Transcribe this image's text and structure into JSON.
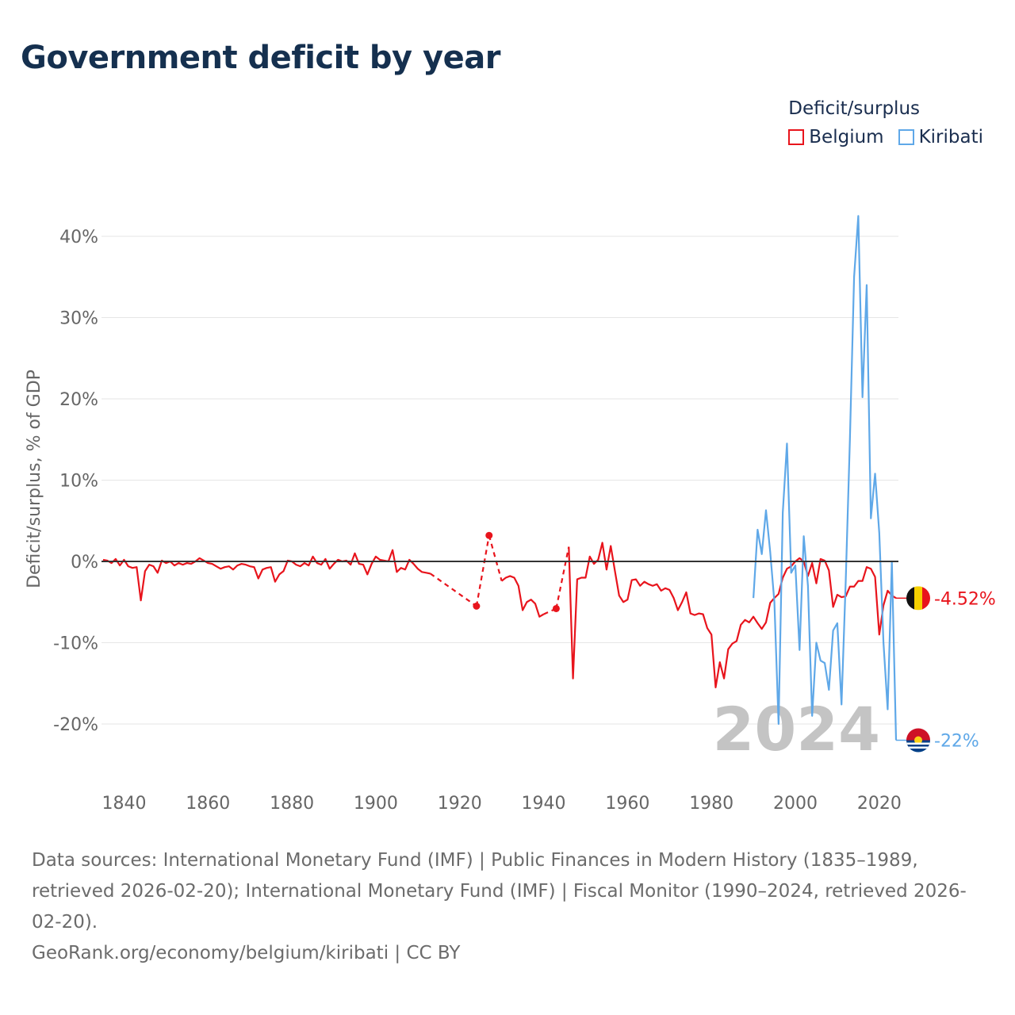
{
  "page_title": "Government deficit by year",
  "legend": {
    "title": "Deficit/surplus",
    "items": [
      {
        "label": "Belgium",
        "color": "#e8141c"
      },
      {
        "label": "Kiribati",
        "color": "#5fa8e8"
      }
    ]
  },
  "watermark_year": "2024",
  "colors": {
    "belgium": "#e8141c",
    "kiribati": "#5fa8e8",
    "zero_line": "#333333",
    "grid": "#e6e6e6",
    "tick": "#666666",
    "watermark": "#c4c4c4"
  },
  "chart_data": {
    "type": "line",
    "title": "Government deficit by year",
    "xlabel": "",
    "ylabel": "Deficit/surplus, % of GDP",
    "xlim": [
      1835,
      2024
    ],
    "ylim": [
      -26,
      48
    ],
    "x_ticks": [
      1840,
      1860,
      1880,
      1900,
      1920,
      1940,
      1960,
      1980,
      2000,
      2020
    ],
    "y_ticks": [
      {
        "value": 40,
        "label": "40%"
      },
      {
        "value": 30,
        "label": "30%"
      },
      {
        "value": 20,
        "label": "20%"
      },
      {
        "value": 10,
        "label": "10%"
      },
      {
        "value": 0,
        "label": "0%"
      },
      {
        "value": -10,
        "label": "-10%"
      },
      {
        "value": -20,
        "label": "-20%"
      }
    ],
    "grid": true,
    "series": [
      {
        "name": "Belgium",
        "final_label": "-4.52%",
        "final_value": -4.52,
        "points": [
          [
            1835,
            0.2
          ],
          [
            1836,
            0.1
          ],
          [
            1837,
            -0.2
          ],
          [
            1838,
            0.3
          ],
          [
            1839,
            -0.5
          ],
          [
            1840,
            0.2
          ],
          [
            1841,
            -0.6
          ],
          [
            1842,
            -0.8
          ],
          [
            1843,
            -0.7
          ],
          [
            1844,
            -4.8
          ],
          [
            1845,
            -1.2
          ],
          [
            1846,
            -0.4
          ],
          [
            1847,
            -0.6
          ],
          [
            1848,
            -1.4
          ],
          [
            1849,
            0.1
          ],
          [
            1850,
            -0.2
          ],
          [
            1851,
            0.0
          ],
          [
            1852,
            -0.5
          ],
          [
            1853,
            -0.2
          ],
          [
            1854,
            -0.4
          ],
          [
            1855,
            -0.2
          ],
          [
            1856,
            -0.3
          ],
          [
            1857,
            0.0
          ],
          [
            1858,
            0.4
          ],
          [
            1859,
            0.1
          ],
          [
            1860,
            -0.2
          ],
          [
            1861,
            -0.3
          ],
          [
            1862,
            -0.6
          ],
          [
            1863,
            -0.9
          ],
          [
            1864,
            -0.7
          ],
          [
            1865,
            -0.6
          ],
          [
            1866,
            -1.0
          ],
          [
            1867,
            -0.5
          ],
          [
            1868,
            -0.3
          ],
          [
            1869,
            -0.4
          ],
          [
            1870,
            -0.6
          ],
          [
            1871,
            -0.7
          ],
          [
            1872,
            -2.1
          ],
          [
            1873,
            -1.0
          ],
          [
            1874,
            -0.8
          ],
          [
            1875,
            -0.7
          ],
          [
            1876,
            -2.5
          ],
          [
            1877,
            -1.6
          ],
          [
            1878,
            -1.2
          ],
          [
            1879,
            0.1
          ],
          [
            1880,
            0.0
          ],
          [
            1881,
            -0.4
          ],
          [
            1882,
            -0.6
          ],
          [
            1883,
            -0.2
          ],
          [
            1884,
            -0.5
          ],
          [
            1885,
            0.6
          ],
          [
            1886,
            -0.2
          ],
          [
            1887,
            -0.4
          ],
          [
            1888,
            0.3
          ],
          [
            1889,
            -0.9
          ],
          [
            1890,
            -0.3
          ],
          [
            1891,
            0.2
          ],
          [
            1892,
            0.0
          ],
          [
            1893,
            0.1
          ],
          [
            1894,
            -0.4
          ],
          [
            1895,
            1.0
          ],
          [
            1896,
            -0.3
          ],
          [
            1897,
            -0.4
          ],
          [
            1898,
            -1.6
          ],
          [
            1899,
            -0.3
          ],
          [
            1900,
            0.6
          ],
          [
            1901,
            0.2
          ],
          [
            1902,
            0.1
          ],
          [
            1903,
            0.0
          ],
          [
            1904,
            1.4
          ],
          [
            1905,
            -1.3
          ],
          [
            1906,
            -0.8
          ],
          [
            1907,
            -1.0
          ],
          [
            1908,
            0.2
          ],
          [
            1909,
            -0.3
          ],
          [
            1910,
            -0.9
          ],
          [
            1911,
            -1.3
          ],
          [
            1912,
            -1.4
          ],
          [
            1913,
            -1.5
          ],
          [
            1924,
            -5.5
          ],
          [
            1927,
            3.2
          ],
          [
            1930,
            -2.4
          ],
          [
            1931,
            -2.0
          ],
          [
            1932,
            -1.8
          ],
          [
            1933,
            -2.0
          ],
          [
            1934,
            -3.0
          ],
          [
            1935,
            -6.0
          ],
          [
            1936,
            -5.0
          ],
          [
            1937,
            -4.7
          ],
          [
            1938,
            -5.2
          ],
          [
            1939,
            -6.8
          ],
          [
            1940,
            -6.5
          ],
          [
            1943,
            -5.8
          ],
          [
            1946,
            1.8
          ],
          [
            1947,
            -14.4
          ],
          [
            1948,
            -2.2
          ],
          [
            1949,
            -2.0
          ],
          [
            1950,
            -2.0
          ],
          [
            1951,
            0.6
          ],
          [
            1952,
            -0.3
          ],
          [
            1953,
            0.2
          ],
          [
            1954,
            2.3
          ],
          [
            1955,
            -1.0
          ],
          [
            1956,
            1.9
          ],
          [
            1957,
            -1.2
          ],
          [
            1958,
            -4.2
          ],
          [
            1959,
            -5.0
          ],
          [
            1960,
            -4.7
          ],
          [
            1961,
            -2.3
          ],
          [
            1962,
            -2.2
          ],
          [
            1963,
            -3.0
          ],
          [
            1964,
            -2.5
          ],
          [
            1965,
            -2.8
          ],
          [
            1966,
            -3.0
          ],
          [
            1967,
            -2.8
          ],
          [
            1968,
            -3.6
          ],
          [
            1969,
            -3.3
          ],
          [
            1970,
            -3.5
          ],
          [
            1971,
            -4.5
          ],
          [
            1972,
            -6.0
          ],
          [
            1973,
            -5.0
          ],
          [
            1974,
            -3.8
          ],
          [
            1975,
            -6.4
          ],
          [
            1976,
            -6.6
          ],
          [
            1977,
            -6.4
          ],
          [
            1978,
            -6.5
          ],
          [
            1979,
            -8.2
          ],
          [
            1980,
            -9.0
          ],
          [
            1981,
            -15.5
          ],
          [
            1982,
            -12.4
          ],
          [
            1983,
            -14.4
          ],
          [
            1984,
            -10.8
          ],
          [
            1985,
            -10.1
          ],
          [
            1986,
            -9.8
          ],
          [
            1987,
            -7.8
          ],
          [
            1988,
            -7.2
          ],
          [
            1989,
            -7.5
          ],
          [
            1990,
            -6.8
          ],
          [
            1991,
            -7.6
          ],
          [
            1992,
            -8.3
          ],
          [
            1993,
            -7.5
          ],
          [
            1994,
            -5.1
          ],
          [
            1995,
            -4.5
          ],
          [
            1996,
            -4.0
          ],
          [
            1997,
            -2.0
          ],
          [
            1998,
            -0.9
          ],
          [
            1999,
            -0.6
          ],
          [
            2000,
            0.0
          ],
          [
            2001,
            0.4
          ],
          [
            2002,
            0.0
          ],
          [
            2003,
            -1.8
          ],
          [
            2004,
            -0.2
          ],
          [
            2005,
            -2.7
          ],
          [
            2006,
            0.3
          ],
          [
            2007,
            0.1
          ],
          [
            2008,
            -1.1
          ],
          [
            2009,
            -5.6
          ],
          [
            2010,
            -4.1
          ],
          [
            2011,
            -4.4
          ],
          [
            2012,
            -4.3
          ],
          [
            2013,
            -3.1
          ],
          [
            2014,
            -3.1
          ],
          [
            2015,
            -2.4
          ],
          [
            2016,
            -2.4
          ],
          [
            2017,
            -0.7
          ],
          [
            2018,
            -0.9
          ],
          [
            2019,
            -1.9
          ],
          [
            2020,
            -9.0
          ],
          [
            2021,
            -5.4
          ],
          [
            2022,
            -3.6
          ],
          [
            2023,
            -4.2
          ],
          [
            2024,
            -4.52
          ]
        ]
      },
      {
        "name": "Kiribati",
        "final_label": "-22%",
        "final_value": -22,
        "points": [
          [
            1990,
            -4.5
          ],
          [
            1991,
            3.9
          ],
          [
            1992,
            0.9
          ],
          [
            1993,
            6.3
          ],
          [
            1994,
            1.2
          ],
          [
            1995,
            -5.0
          ],
          [
            1996,
            -20.0
          ],
          [
            1997,
            6.0
          ],
          [
            1998,
            14.5
          ],
          [
            1999,
            -1.4
          ],
          [
            2000,
            -0.5
          ],
          [
            2001,
            -10.9
          ],
          [
            2002,
            3.1
          ],
          [
            2003,
            -3.0
          ],
          [
            2004,
            -19.0
          ],
          [
            2005,
            -10.0
          ],
          [
            2006,
            -12.2
          ],
          [
            2007,
            -12.5
          ],
          [
            2008,
            -15.8
          ],
          [
            2009,
            -8.5
          ],
          [
            2010,
            -7.6
          ],
          [
            2011,
            -17.6
          ],
          [
            2012,
            -2.5
          ],
          [
            2013,
            15.0
          ],
          [
            2014,
            35.0
          ],
          [
            2015,
            42.5
          ],
          [
            2016,
            20.2
          ],
          [
            2017,
            34.0
          ],
          [
            2018,
            5.3
          ],
          [
            2019,
            10.8
          ],
          [
            2020,
            3.5
          ],
          [
            2021,
            -10.0
          ],
          [
            2022,
            -18.2
          ],
          [
            2023,
            0.0
          ],
          [
            2024,
            -22.0
          ]
        ]
      }
    ]
  },
  "footer": {
    "sources": "Data sources: International Monetary Fund (IMF) | Public Finances in Modern History (1835–1989, retrieved 2026-02-20); International Monetary Fund (IMF) | Fiscal Monitor (1990–2024, retrieved 2026-02-20).",
    "credit": "GeoRank.org/economy/belgium/kiribati | CC BY"
  }
}
